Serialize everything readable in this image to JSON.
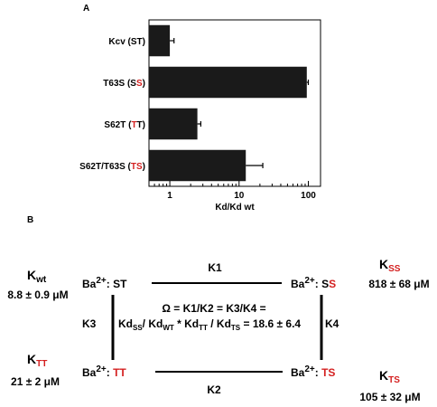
{
  "panels": {
    "a": "A",
    "b": "B"
  },
  "chart_data": {
    "type": "bar",
    "orientation": "horizontal",
    "x_scale": "log",
    "xlim": [
      0.5,
      150
    ],
    "xticks": [
      1,
      10,
      100
    ],
    "xtick_labels": [
      "1",
      "10",
      "100"
    ],
    "xlabel": "Kd/Kd wt",
    "categories": [
      {
        "pre": "Kcv (",
        "mid": "ST",
        "mid_red": false,
        "post": ")"
      },
      {
        "pre": "T63S (S",
        "mid": "S",
        "mid_red": true,
        "post": ")"
      },
      {
        "pre": "S62T (",
        "mid": "T",
        "mid_red": true,
        "post": "T)"
      },
      {
        "pre": "S62T/T63S (",
        "mid": "TS",
        "mid_red": true,
        "post": ")"
      }
    ],
    "values": [
      1,
      95,
      2.5,
      12.5
    ],
    "error_upper": [
      1.15,
      100,
      2.8,
      22
    ],
    "bar_color": "#1a1a1a",
    "highlight_color": "#d42020"
  },
  "scheme": {
    "k_wt": {
      "main": "K",
      "sub": "wt",
      "value": "8.8 ± 0.9 μM"
    },
    "k_ss": {
      "main": "K",
      "sub": "SS",
      "value": "818 ± 68 μM"
    },
    "k_tt": {
      "main": "K",
      "sub": "TT",
      "value": "21 ± 2 μM"
    },
    "k_ts": {
      "main": "K",
      "sub": "TS",
      "value": "105 ± 32 μM"
    },
    "ba": "Ba",
    "charge": "2+",
    "colon": ":",
    "state_st": "ST",
    "state_ss_black": "S",
    "state_ss_red": "S",
    "state_tt": "TT",
    "state_ts": "TS",
    "k1": "K1",
    "k2": "K2",
    "k3": "K3",
    "k4": "K4",
    "eq_line1": "Ω = K1/K2 = K3/K4 =",
    "eq_line2_parts": [
      "Kd",
      "SS",
      "/ Kd",
      "WT",
      " * Kd",
      "TT",
      " / Kd",
      "TS",
      "  =  18.6 ± 6.4"
    ]
  }
}
